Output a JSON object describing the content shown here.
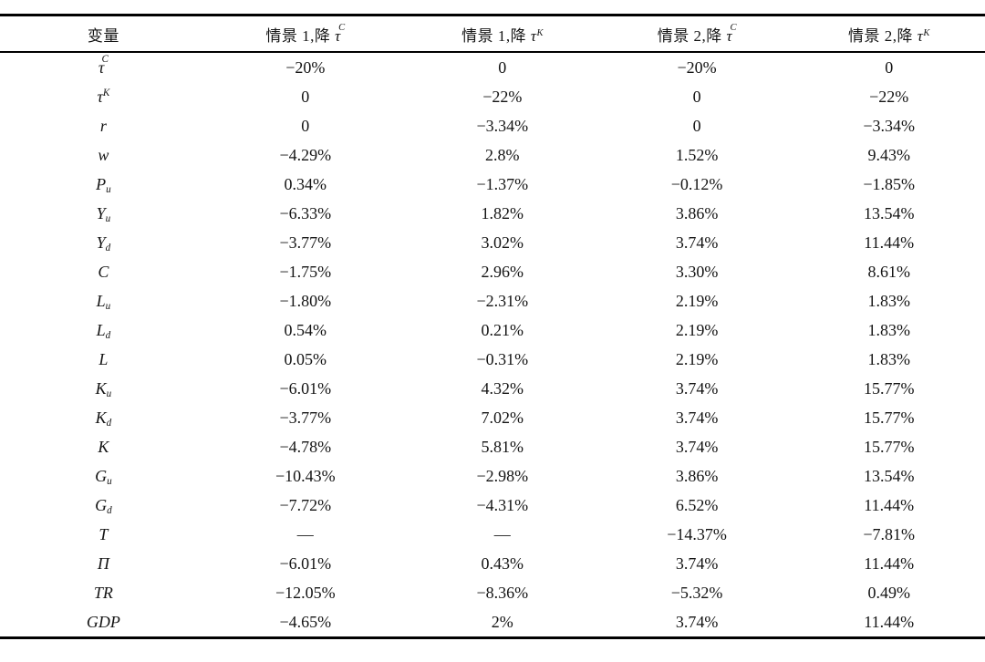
{
  "page": {
    "background_color": "#ffffff",
    "text_color": "#141414",
    "rule_color": "#000000"
  },
  "table": {
    "header": [
      {
        "text": "变量"
      },
      {
        "prefix": "情景 1,降 ",
        "base": "τ",
        "sup": "C",
        "sup_high": true
      },
      {
        "prefix": "情景 1,降 ",
        "base": "τ",
        "sup": "K",
        "sup_high": false
      },
      {
        "prefix": "情景 2,降 ",
        "base": "τ",
        "sup": "C",
        "sup_high": true
      },
      {
        "prefix": "情景 2,降 ",
        "base": "τ",
        "sup": "K",
        "sup_high": false
      }
    ],
    "rows": [
      {
        "var": {
          "base": "τ",
          "sup": "C",
          "sup_high": true
        },
        "values": [
          "−20%",
          "0",
          "−20%",
          "0"
        ]
      },
      {
        "var": {
          "base": "τ",
          "sup": "K",
          "sup_high": false
        },
        "values": [
          "0",
          "−22%",
          "0",
          "−22%"
        ]
      },
      {
        "var": {
          "base": "r"
        },
        "values": [
          "0",
          "−3.34%",
          "0",
          "−3.34%"
        ]
      },
      {
        "var": {
          "base": "w"
        },
        "values": [
          "−4.29%",
          "2.8%",
          "1.52%",
          "9.43%"
        ]
      },
      {
        "var": {
          "base": "P",
          "sub": "u"
        },
        "values": [
          "0.34%",
          "−1.37%",
          "−0.12%",
          "−1.85%"
        ]
      },
      {
        "var": {
          "base": "Y",
          "sub": "u"
        },
        "values": [
          "−6.33%",
          "1.82%",
          "3.86%",
          "13.54%"
        ]
      },
      {
        "var": {
          "base": "Y",
          "sub": "d"
        },
        "values": [
          "−3.77%",
          "3.02%",
          "3.74%",
          "11.44%"
        ]
      },
      {
        "var": {
          "base": "C"
        },
        "values": [
          "−1.75%",
          "2.96%",
          "3.30%",
          "8.61%"
        ]
      },
      {
        "var": {
          "base": "L",
          "sub": "u"
        },
        "values": [
          "−1.80%",
          "−2.31%",
          "2.19%",
          "1.83%"
        ]
      },
      {
        "var": {
          "base": "L",
          "sub": "d"
        },
        "values": [
          "0.54%",
          "0.21%",
          "2.19%",
          "1.83%"
        ]
      },
      {
        "var": {
          "base": "L"
        },
        "values": [
          "0.05%",
          "−0.31%",
          "2.19%",
          "1.83%"
        ]
      },
      {
        "var": {
          "base": "K",
          "sub": "u"
        },
        "values": [
          "−6.01%",
          "4.32%",
          "3.74%",
          "15.77%"
        ]
      },
      {
        "var": {
          "base": "K",
          "sub": "d"
        },
        "values": [
          "−3.77%",
          "7.02%",
          "3.74%",
          "15.77%"
        ]
      },
      {
        "var": {
          "base": "K"
        },
        "values": [
          "−4.78%",
          "5.81%",
          "3.74%",
          "15.77%"
        ]
      },
      {
        "var": {
          "base": "G",
          "sub": "u"
        },
        "values": [
          "−10.43%",
          "−2.98%",
          "3.86%",
          "13.54%"
        ]
      },
      {
        "var": {
          "base": "G",
          "sub": "d"
        },
        "values": [
          "−7.72%",
          "−4.31%",
          "6.52%",
          "11.44%"
        ]
      },
      {
        "var": {
          "base": "T"
        },
        "values": [
          "—",
          "—",
          "−14.37%",
          "−7.81%"
        ]
      },
      {
        "var": {
          "base": "Π"
        },
        "values": [
          "−6.01%",
          "0.43%",
          "3.74%",
          "11.44%"
        ]
      },
      {
        "var": {
          "base": "TR"
        },
        "values": [
          "−12.05%",
          "−8.36%",
          "−5.32%",
          "0.49%"
        ]
      },
      {
        "var": {
          "base": "GDP"
        },
        "values": [
          "−4.65%",
          "2%",
          "3.74%",
          "11.44%"
        ]
      }
    ]
  },
  "chart_data": {
    "type": "table",
    "title": "",
    "columns": [
      "变量",
      "情景 1,降 τ^C",
      "情景 1,降 τ^K",
      "情景 2,降 τ^C",
      "情景 2,降 τ^K"
    ],
    "row_labels": [
      "τ^C",
      "τ^K",
      "r",
      "w",
      "P_u",
      "Y_u",
      "Y_d",
      "C",
      "L_u",
      "L_d",
      "L",
      "K_u",
      "K_d",
      "K",
      "G_u",
      "G_d",
      "T",
      "Π",
      "TR",
      "GDP"
    ],
    "series": [
      {
        "name": "情景 1,降 τ^C",
        "values": [
          "−20%",
          "0",
          "0",
          "−4.29%",
          "0.34%",
          "−6.33%",
          "−3.77%",
          "−1.75%",
          "−1.80%",
          "0.54%",
          "0.05%",
          "−6.01%",
          "−3.77%",
          "−4.78%",
          "−10.43%",
          "−7.72%",
          "—",
          "−6.01%",
          "−12.05%",
          "−4.65%"
        ]
      },
      {
        "name": "情景 1,降 τ^K",
        "values": [
          "0",
          "−22%",
          "−3.34%",
          "2.8%",
          "−1.37%",
          "1.82%",
          "3.02%",
          "2.96%",
          "−2.31%",
          "0.21%",
          "−0.31%",
          "4.32%",
          "7.02%",
          "5.81%",
          "−2.98%",
          "−4.31%",
          "—",
          "0.43%",
          "−8.36%",
          "2%"
        ]
      },
      {
        "name": "情景 2,降 τ^C",
        "values": [
          "−20%",
          "0",
          "0",
          "1.52%",
          "−0.12%",
          "3.86%",
          "3.74%",
          "3.30%",
          "2.19%",
          "2.19%",
          "2.19%",
          "3.74%",
          "3.74%",
          "3.74%",
          "3.86%",
          "6.52%",
          "−14.37%",
          "3.74%",
          "−5.32%",
          "3.74%"
        ]
      },
      {
        "name": "情景 2,降 τ^K",
        "values": [
          "0",
          "−22%",
          "−3.34%",
          "9.43%",
          "−1.85%",
          "13.54%",
          "11.44%",
          "8.61%",
          "1.83%",
          "1.83%",
          "1.83%",
          "15.77%",
          "15.77%",
          "15.77%",
          "13.54%",
          "11.44%",
          "−7.81%",
          "11.44%",
          "0.49%",
          "11.44%"
        ]
      }
    ]
  }
}
